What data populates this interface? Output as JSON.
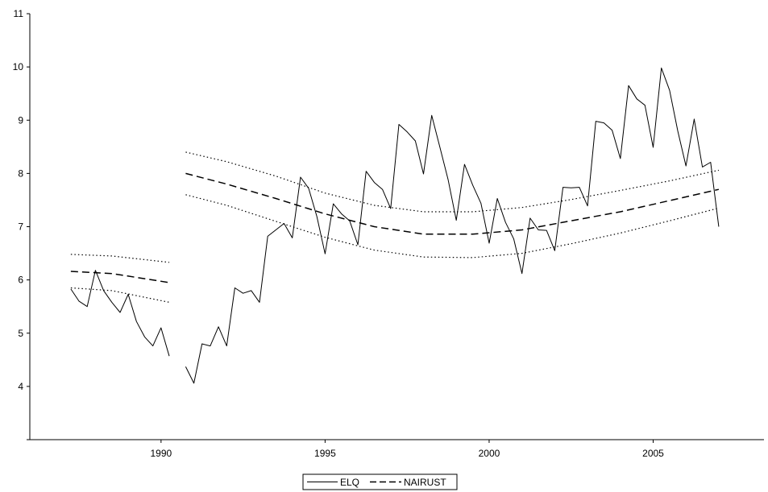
{
  "chart_data": {
    "type": "line",
    "title": "",
    "xlabel": "",
    "ylabel": "",
    "xlim": [
      1986.0,
      2008.5
    ],
    "ylim": [
      3,
      11
    ],
    "yticks": [
      4,
      5,
      6,
      7,
      8,
      9,
      10,
      11
    ],
    "xticks": [
      1990,
      1995,
      2000,
      2005
    ],
    "grid": false,
    "legend_position": "bottom-center",
    "legend": [
      "ELQ",
      "NAIRUST"
    ],
    "series": [
      {
        "name": "ELQ",
        "style": "solid",
        "segments": [
          {
            "x": [
              1987.25,
              1987.5,
              1987.75,
              1988.0,
              1988.25,
              1988.5,
              1988.75,
              1989.0,
              1989.25,
              1989.5,
              1989.75,
              1990.0,
              1990.25
            ],
            "y": [
              5.83,
              5.6,
              5.5,
              6.18,
              5.8,
              5.58,
              5.39,
              5.73,
              5.22,
              4.93,
              4.76,
              5.1,
              4.57
            ]
          },
          {
            "x": [
              1990.75,
              1991.0,
              1991.25,
              1991.5,
              1991.75,
              1992.0,
              1992.25,
              1992.5,
              1992.75,
              1993.0,
              1993.25,
              1993.5,
              1993.75,
              1994.0,
              1994.25,
              1994.5,
              1994.75,
              1995.0,
              1995.25,
              1995.5,
              1995.75,
              1996.0,
              1996.25,
              1996.5,
              1996.75,
              1997.0,
              1997.25,
              1997.5,
              1997.75,
              1998.0,
              1998.25,
              1998.5,
              1998.75,
              1999.0,
              1999.25,
              1999.5,
              1999.75,
              2000.0,
              2000.25,
              2000.5,
              2000.75,
              2001.0,
              2001.25,
              2001.5,
              2001.75,
              2002.0,
              2002.25,
              2002.5,
              2002.75,
              2003.0,
              2003.25,
              2003.5,
              2003.75,
              2004.0,
              2004.25,
              2004.5,
              2004.75,
              2005.0,
              2005.25,
              2005.5,
              2005.75,
              2006.0,
              2006.25,
              2006.5,
              2006.75,
              2007.0
            ],
            "y": [
              4.37,
              4.06,
              4.8,
              4.76,
              5.12,
              4.76,
              5.85,
              5.75,
              5.8,
              5.58,
              6.82,
              6.94,
              7.06,
              6.79,
              7.93,
              7.72,
              7.19,
              6.49,
              7.43,
              7.24,
              7.11,
              6.66,
              8.04,
              7.83,
              7.7,
              7.34,
              8.92,
              8.78,
              8.61,
              7.99,
              9.09,
              8.49,
              7.88,
              7.12,
              8.17,
              7.78,
              7.44,
              6.69,
              7.53,
              7.08,
              6.77,
              6.12,
              7.16,
              6.94,
              6.93,
              6.55,
              7.74,
              7.73,
              7.74,
              7.39,
              8.98,
              8.95,
              8.81,
              8.28,
              9.65,
              9.4,
              9.28,
              8.49,
              9.98,
              9.56,
              8.8,
              8.14,
              9.02,
              8.12,
              8.21,
              7.0
            ]
          }
        ]
      },
      {
        "name": "NAIRUST",
        "style": "dashed",
        "segments": [
          {
            "x": [
              1987.25,
              1988.5,
              1990.25
            ],
            "y": [
              6.16,
              6.12,
              5.95
            ]
          },
          {
            "x": [
              1990.75,
              1992.0,
              1993.5,
              1995.0,
              1996.5,
              1998.0,
              1999.5,
              2001.0,
              2002.5,
              2004.0,
              2005.5,
              2007.0
            ],
            "y": [
              8.0,
              7.8,
              7.53,
              7.24,
              7.0,
              6.86,
              6.86,
              6.94,
              7.11,
              7.28,
              7.49,
              7.7
            ]
          }
        ]
      },
      {
        "style": "dotted",
        "segments": [
          {
            "x": [
              1987.25,
              1988.5,
              1990.25
            ],
            "y": [
              6.48,
              6.45,
              6.33
            ]
          },
          {
            "x": [
              1990.75,
              1992.0,
              1993.5,
              1995.0,
              1996.5,
              1998.0,
              1999.5,
              2001.0,
              2002.5,
              2004.0,
              2005.5,
              2007.0
            ],
            "y": [
              8.4,
              8.22,
              7.95,
              7.63,
              7.4,
              7.28,
              7.28,
              7.36,
              7.51,
              7.68,
              7.86,
              8.06
            ]
          }
        ]
      },
      {
        "style": "dotted",
        "segments": [
          {
            "x": [
              1987.25,
              1988.5,
              1990.25
            ],
            "y": [
              5.85,
              5.8,
              5.58
            ]
          },
          {
            "x": [
              1990.75,
              1992.0,
              1993.5,
              1995.0,
              1996.5,
              1998.0,
              1999.5,
              2001.0,
              2002.5,
              2004.0,
              2005.5,
              2007.0
            ],
            "y": [
              7.6,
              7.4,
              7.1,
              6.8,
              6.56,
              6.43,
              6.42,
              6.5,
              6.68,
              6.88,
              7.11,
              7.35
            ]
          }
        ]
      }
    ]
  }
}
